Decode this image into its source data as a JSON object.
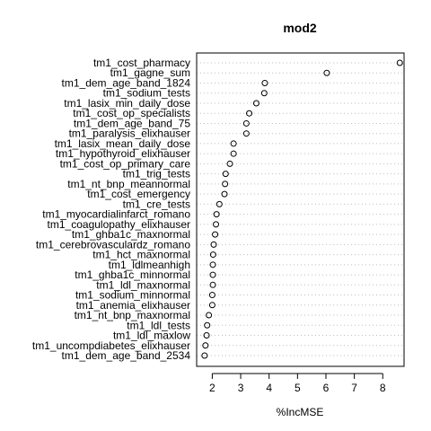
{
  "chart_data": {
    "type": "scatter",
    "variant": "dotchart",
    "title": "mod2",
    "xlabel": "%IncMSE",
    "ylabel": "",
    "xlim": [
      1.45,
      8.75
    ],
    "xticks": [
      2,
      3,
      4,
      5,
      6,
      7,
      8
    ],
    "grid": "dotted horizontal guides",
    "point_style": "open circle",
    "categories": [
      "tm1_cost_pharmacy",
      "tm1_gagne_sum",
      "tm1_dem_age_band_1824",
      "tm1_sodium_tests",
      "tm1_lasix_min_daily_dose",
      "tm1_cost_op_specialists",
      "tm1_dem_age_band_75",
      "tm1_paralysis_elixhauser",
      "tm1_lasix_mean_daily_dose",
      "tm1_hypothyroid_elixhauser",
      "tm1_cost_op_primary_care",
      "tm1_trig_tests",
      "tm1_nt_bnp_meannormal",
      "tm1_cost_emergency",
      "tm1_cre_tests",
      "tm1_myocardialinfarct_romano",
      "tm1_coagulopathy_elixhauser",
      "tm1_ghba1c_maxnormal",
      "tm1_cerebrovasculardz_romano",
      "tm1_hct_maxnormal",
      "tm1_ldlmeanhigh",
      "tm1_ghba1c_minnormal",
      "tm1_ldl_maxnormal",
      "tm1_sodium_minnormal",
      "tm1_anemia_elixhauser",
      "tm1_nt_bnp_maxnormal",
      "tm1_ldl_tests",
      "tm1_ldl_maxlow",
      "tm1_uncompdiabetes_elixhauser",
      "tm1_dem_age_band_2534"
    ],
    "values": [
      8.6,
      6.03,
      3.85,
      3.83,
      3.55,
      3.3,
      3.2,
      3.2,
      2.75,
      2.75,
      2.62,
      2.47,
      2.45,
      2.43,
      2.25,
      2.15,
      2.13,
      2.1,
      2.05,
      2.03,
      2.02,
      2.02,
      2.02,
      2.0,
      2.0,
      1.88,
      1.82,
      1.8,
      1.76,
      1.73
    ]
  }
}
